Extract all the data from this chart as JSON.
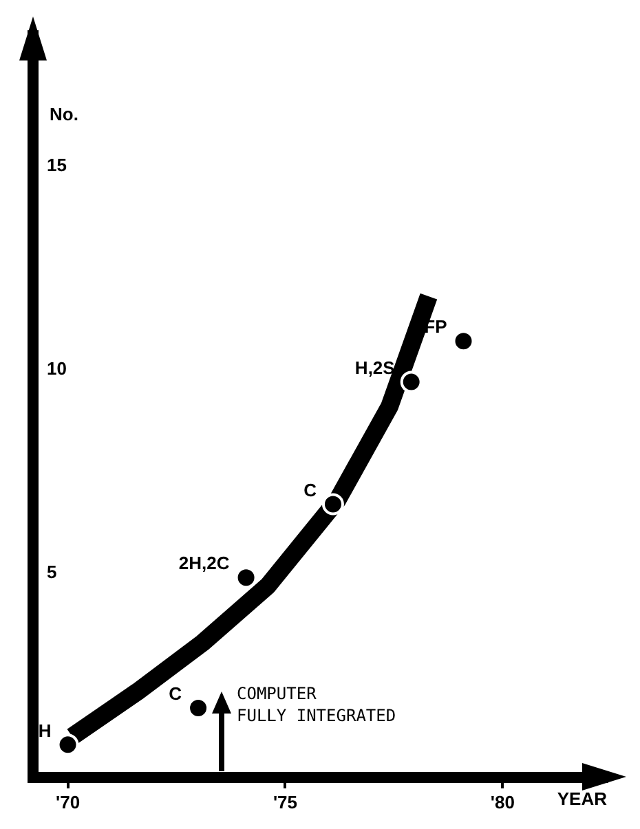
{
  "chart_data": {
    "type": "scatter",
    "xlabel": "YEAR",
    "ylabel": "No.",
    "xlim": [
      1969.2,
      1982.4
    ],
    "ylim": [
      0,
      18.2
    ],
    "xticks": [
      {
        "value": 1970,
        "label": "'70"
      },
      {
        "value": 1975,
        "label": "'75"
      },
      {
        "value": 1980,
        "label": "'80"
      }
    ],
    "yticks": [
      5,
      10,
      15
    ],
    "grid": false,
    "legend": false,
    "series": [
      {
        "type": "line",
        "color": "#000000",
        "x": [
          1970.1,
          1971.6,
          1973.1,
          1974.6,
          1976.2,
          1977.4,
          1978.3
        ],
        "values": [
          1.0,
          2.1,
          3.3,
          4.7,
          6.8,
          9.1,
          11.8
        ]
      },
      {
        "type": "scatter",
        "color": "#000000",
        "marker": "circle",
        "x": [
          1970,
          1973,
          1974.1,
          1976.1,
          1977.9,
          1979.1
        ],
        "values": [
          0.8,
          1.7,
          4.9,
          6.7,
          9.7,
          10.7
        ]
      }
    ],
    "annotations": [
      {
        "text": "H",
        "x": 1970,
        "y": 0.8
      },
      {
        "text": "C",
        "x": 1973,
        "y": 1.7
      },
      {
        "text": "2H,2C",
        "x": 1974.1,
        "y": 4.9
      },
      {
        "text": "C",
        "x": 1976.1,
        "y": 6.7
      },
      {
        "text": "H,2S",
        "x": 1977.9,
        "y": 9.7
      },
      {
        "text": "FP",
        "x": 1979.1,
        "y": 10.7
      },
      "COMPUTER\nFULLY INTEGRATED"
    ]
  }
}
